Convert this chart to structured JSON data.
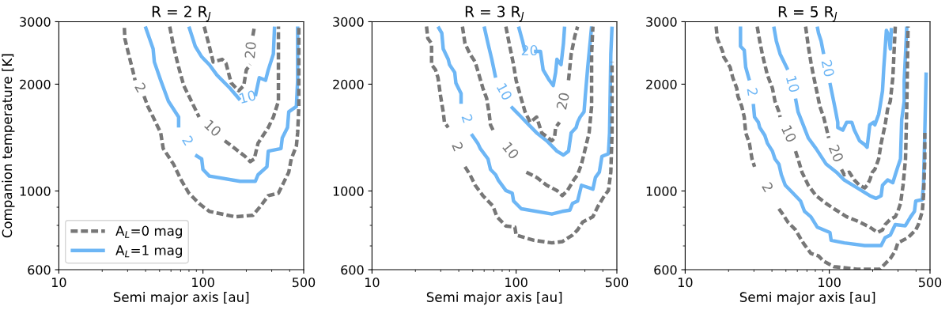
{
  "chart_data": [
    {
      "type": "line",
      "title": "R = 2 R$_{J}$",
      "xlabel": "Semi major axis [au]",
      "ylabel": "Companion temperature [K]",
      "log": "xy",
      "xlim": [
        10,
        500
      ],
      "ylim": [
        600,
        3000
      ],
      "xticks": [
        10,
        100,
        500
      ],
      "yticks": [
        600,
        1000,
        2000,
        3000
      ],
      "grid": false,
      "legend": "bottom left",
      "series": [
        {
          "name": "A$_{L}$=0 mag",
          "color": "#777777",
          "line_style": "dashed",
          "x": [
            28.5,
            28.7,
            30.5,
            32.5,
            33.8,
            null,
            39.0,
            41.5,
            45.1,
            50.9,
            53.0,
            62.5,
            70.6,
            79.9,
            94.0,
            110.7,
            166.7,
            222,
            251,
            284,
            334,
            363,
            394,
            410,
            445,
            454,
            463,
            463,
            463
          ],
          "values": [
            2882,
            2690,
            2431,
            2195,
            2051,
            null,
            1852,
            1730,
            1616,
            1459,
            1317,
            1190,
            1074,
            986,
            922,
            876,
            846,
            854,
            906,
            970,
            986,
            1056,
            1130,
            1231,
            1340,
            1459,
            1730,
            2233,
            2882
          ]
        },
        {
          "name": "A$_{L}$=1 mag",
          "color": "#6db6f5",
          "line_style": "solid",
          "x": [
            39.8,
            45.1,
            46.0,
            50.9,
            57.6,
            67.8,
            67.8,
            null,
            88.4,
            98.0,
            100,
            110.7,
            181,
            231,
            241,
            278,
            284,
            348,
            355,
            386,
            394,
            445,
            454,
            454
          ],
          "values": [
            2907,
            2515,
            2310,
            2051,
            1790,
            1616,
            1510,
            null,
            1263,
            1231,
            1150,
            1102,
            1065,
            1065,
            1111,
            1170,
            1295,
            1317,
            1410,
            1510,
            1672,
            1730,
            2051,
            2907
          ]
        },
        {
          "color": "#777777",
          "line_style": "dashed",
          "x": [
            58.8,
            62.5,
            67.8,
            73.6,
            83.2,
            94.0,
            null,
            141.6,
            166.7,
            196,
            213,
            227,
            241,
            284,
            308,
            334,
            334,
            334
          ],
          "values": [
            2907,
            2558,
            2233,
            1982,
            1790,
            1616,
            null,
            1386,
            1317,
            1252,
            1210,
            1231,
            1363,
            1510,
            1616,
            1790,
            2431,
            2907
          ]
        },
        {
          "color": "#6db6f5",
          "line_style": "solid",
          "x": [
            79.9,
            88.4,
            98,
            110.7,
            125,
            154,
            181,
            null,
            231,
            246,
            272,
            284,
            308,
            314
          ],
          "values": [
            2907,
            2558,
            2389,
            2271,
            2122,
            1949,
            1805,
            null,
            1852,
            2086,
            2051,
            2195,
            2431,
            2907
          ]
        },
        {
          "color": "#777777",
          "line_style": "dashed",
          "x": [
            102,
            110.7,
            117.8,
            135.9,
            144.5,
            157,
            177,
            192,
            200,
            213,
            null,
            222,
            227
          ],
          "values": [
            2907,
            2558,
            2310,
            2350,
            2291,
            2016,
            1916,
            1982,
            2195,
            2271,
            null,
            2739,
            2882
          ]
        }
      ],
      "annotations": [
        {
          "text": "2",
          "x": 33.8,
          "y": 2051
        },
        {
          "text": "2",
          "x": 67.8,
          "y": 1510
        },
        {
          "text": "10",
          "x": 94.0,
          "y": 1616
        },
        {
          "text": "10",
          "x": 181,
          "y": 1805
        },
        {
          "text": "20",
          "x": 213,
          "y": 2271
        }
      ]
    },
    {
      "type": "line",
      "title": "R = 3 R$_{J}$",
      "xlabel": "Semi major axis [au]",
      "log": "xy",
      "xlim": [
        10,
        500
      ],
      "ylim": [
        600,
        3000
      ],
      "xticks": [
        10,
        100,
        500
      ],
      "yticks": [
        600,
        1000,
        2000,
        3000
      ],
      "grid": false,
      "series": [
        {
          "color": "#777777",
          "line_style": "dashed",
          "x": [
            23.9,
            24.4,
            25.9,
            25.9,
            27.6,
            28.7,
            29.9,
            31.2,
            31.8,
            33.8,
            null,
            44.2,
            47.9,
            52.0,
            58.8,
            69.2,
            73.6,
            84.9,
            98,
            100,
            133,
            177,
            209,
            246,
            267,
            290,
            341,
            370,
            410,
            437,
            454,
            463,
            463
          ],
          "values": [
            2907,
            2692,
            2603,
            2271,
            2195,
            2086,
            1852,
            1672,
            1562,
            1510,
            null,
            1170,
            1111,
            1038,
            970,
            906,
            846,
            797,
            791,
            751,
            726,
            714,
            720,
            751,
            777,
            818,
            846,
            906,
            970,
            1003,
            1130,
            1459,
            2310
          ]
        },
        {
          "color": "#6db6f5",
          "line_style": "solid",
          "x": [
            28.7,
            30.5,
            31.2,
            33.8,
            34.5,
            37.5,
            38.2,
            41.5,
            41.5,
            null,
            48.9,
            54.2,
            56.4,
            63.8,
            66.4,
            72.1,
            75.1,
            84.9,
            94,
            96,
            108.6,
            177,
            209,
            236,
            246,
            267,
            284,
            341,
            355,
            378,
            394,
            437,
            445,
            454,
            463
          ],
          "values": [
            2907,
            2786,
            2515,
            2350,
            2271,
            2158,
            2016,
            1883,
            1760,
            null,
            1447,
            1363,
            1317,
            1231,
            1150,
            1111,
            1074,
            1003,
            986,
            937,
            891,
            861,
            876,
            883,
            922,
            937,
            1038,
            1012,
            1092,
            1130,
            1252,
            1273,
            1459,
            2431,
            2907
          ]
        },
        {
          "color": "#777777",
          "line_style": "dashed",
          "x": [
            42.4,
            44.2,
            47.9,
            52.0,
            55.3,
            58.8,
            62.5,
            65.1,
            66.4,
            69.2,
            null,
            117.8,
            138.7,
            163,
            192,
            209,
            227,
            251,
            267,
            284,
            302,
            321,
            334,
            334,
            341
          ],
          "values": [
            2907,
            2603,
            2431,
            2310,
            2122,
            1949,
            1822,
            1643,
            1536,
            1484,
            null,
            1130,
            1092,
            1038,
            1003,
            970,
            1003,
            1074,
            1111,
            1190,
            1317,
            1459,
            1730,
            2431,
            2907
          ]
        },
        {
          "color": "#6db6f5",
          "line_style": "solid",
          "x": [
            60,
            63.8,
            67.8,
            72.1,
            null,
            92.2,
            100,
            108.6,
            117.8,
            138.7,
            163,
            192,
            213,
            231,
            241,
            261,
            267,
            278,
            296,
            302,
            314,
            327,
            334
          ],
          "values": [
            2907,
            2603,
            2350,
            2086,
            null,
            1730,
            1672,
            1616,
            1562,
            1459,
            1386,
            1295,
            1263,
            1295,
            1459,
            1510,
            1562,
            1616,
            1672,
            1852,
            2233,
            2648,
            2907
          ]
        },
        {
          "color": "#777777",
          "line_style": "dashed",
          "x": [
            84.9,
            90.3,
            96,
            100,
            106,
            115.3,
            125.3,
            138.7,
            150.5,
            177,
            184.6,
            188,
            200,
            null,
            231,
            241,
            256,
            267
          ],
          "values": [
            2907,
            2558,
            2271,
            2051,
            1883,
            1672,
            1562,
            1616,
            1459,
            1386,
            1410,
            1510,
            1562,
            null,
            2051,
            2431,
            2739,
            2907
          ]
        },
        {
          "color": "#6db6f5",
          "line_style": "solid",
          "x": [
            104,
            110.7,
            115.3,
            null,
            133,
            147.6,
            154,
            170,
            181,
            188,
            192,
            205,
            213,
            217
          ],
          "values": [
            2907,
            2648,
            2473,
            null,
            2473,
            2473,
            2195,
            2051,
            1982,
            2158,
            2350,
            2271,
            2603,
            2907
          ]
        }
      ],
      "annotations": [
        {
          "text": "2",
          "x": 33.8,
          "y": 1510
        },
        {
          "text": "2",
          "x": 41.5,
          "y": 1760
        },
        {
          "text": "10",
          "x": 69.2,
          "y": 1484
        },
        {
          "text": "10",
          "x": 72.1,
          "y": 2086
        },
        {
          "text": "20",
          "x": 200,
          "y": 1562
        },
        {
          "text": "20",
          "x": 115.3,
          "y": 2473
        }
      ]
    },
    {
      "type": "line",
      "title": "R = 5 R$_{J}$",
      "xlabel": "Semi major axis [au]",
      "log": "xy",
      "xlim": [
        10,
        500
      ],
      "ylim": [
        600,
        3000
      ],
      "xticks": [
        10,
        100,
        500
      ],
      "yticks": [
        600,
        1000,
        2000,
        3000
      ],
      "grid": false,
      "series": [
        {
          "color": "#777777",
          "line_style": "dashed",
          "x": [
            16.4,
            16.7,
            18.2,
            18.5,
            20.5,
            21.4,
            22.8,
            23.2,
            24.7,
            25.7,
            26.3,
            27.9,
            29.1,
            30.3,
            null,
            44.7,
            47.5,
            51.5,
            58.3,
            65.9,
            74.5,
            84.2,
            91.4,
            107.7,
            155.6,
            224,
            265,
            287,
            299,
            352,
            398,
            415,
            442,
            451,
            460,
            460
          ],
          "values": [
            2907,
            2692,
            2473,
            2389,
            2233,
            2086,
            1949,
            1852,
            1730,
            1616,
            1459,
            1363,
            1231,
            1170,
            null,
            891,
            861,
            818,
            777,
            714,
            667,
            656,
            634,
            612,
            602,
            602,
            645,
            678,
            714,
            739,
            777,
            804,
            876,
            970,
            1231,
            1459
          ]
        },
        {
          "color": "#6db6f5",
          "line_style": "solid",
          "x": [
            24.2,
            24.2,
            25.7,
            26.3,
            27.9,
            null,
            29.7,
            30.3,
            32.2,
            32.9,
            35.7,
            37.2,
            40.3,
            42,
            44.7,
            46.5,
            49.5,
            56,
            63.2,
            67.3,
            74.5,
            82.5,
            101,
            103,
            127,
            176,
            229,
            244,
            265,
            287,
            337,
            367,
            390,
            398,
            442,
            451,
            460,
            470
          ],
          "values": [
            2907,
            2558,
            2494,
            2233,
            2051,
            null,
            1760,
            1616,
            1562,
            1510,
            1434,
            1363,
            1295,
            1231,
            1190,
            1111,
            1038,
            986,
            937,
            876,
            846,
            791,
            764,
            726,
            714,
            702,
            702,
            739,
            751,
            804,
            798,
            846,
            876,
            937,
            945,
            1056,
            1459,
            2158
          ]
        },
        {
          "color": "#777777",
          "line_style": "dashed",
          "x": [
            31.6,
            32.9,
            34.3,
            35.7,
            37.2,
            40.3,
            42,
            44.7,
            45.6,
            null,
            58.3,
            60.7,
            64.6,
            71.5,
            80.9,
            95.2,
            107.7,
            132,
            162,
            191,
            216,
            234,
            244,
            265,
            287,
            299,
            312,
            325,
            338,
            345,
            352
          ],
          "values": [
            2907,
            2648,
            2431,
            2271,
            2122,
            1949,
            1790,
            1672,
            1616,
            null,
            1295,
            1231,
            1130,
            1038,
            970,
            922,
            891,
            846,
            818,
            791,
            764,
            777,
            804,
            832,
            846,
            876,
            922,
            1038,
            1231,
            1730,
            2907
          ]
        },
        {
          "color": "#6db6f5",
          "line_style": "solid",
          "x": [
            41.2,
            42.9,
            45.6,
            49.5,
            51.5,
            null,
            58.3,
            60.7,
            65.9,
            71.5,
            80.9,
            95.2,
            112,
            127,
            155.6,
            191,
            211,
            229,
            234,
            254,
            276,
            287,
            299,
            312,
            318,
            331,
            331,
            338,
            345
          ],
          "values": [
            2907,
            2648,
            2431,
            2271,
            2195,
            null,
            1822,
            1672,
            1536,
            1410,
            1317,
            1190,
            1130,
            1074,
            1021,
            970,
            953,
            970,
            1038,
            1074,
            1056,
            1111,
            1170,
            1231,
            1589,
            1790,
            2051,
            2431,
            2907
          ]
        },
        {
          "color": "#777777",
          "line_style": "dashed",
          "x": [
            68.5,
            71.5,
            74.5,
            77.5,
            82.5,
            86,
            91.4,
            95.2,
            99.1,
            null,
            121.6,
            127,
            137.6,
            149.3,
            162,
            176,
            183,
            191,
            199,
            207,
            220,
            229,
            244,
            254,
            265,
            276,
            281,
            287
          ],
          "values": [
            2907,
            2558,
            2310,
            2122,
            1883,
            1730,
            1616,
            1510,
            1410,
            null,
            1150,
            1111,
            1130,
            1074,
            1038,
            1020,
            1038,
            1074,
            1130,
            1150,
            1231,
            1363,
            1536,
            1701,
            1790,
            2086,
            2431,
            2907
          ]
        },
        {
          "color": "#6db6f5",
          "line_style": "solid",
          "x": [
            82.5,
            84.2,
            87.7,
            91.4,
            null,
            101,
            105.4,
            110,
            114.5,
            114.5,
            124.2,
            132,
            143.3,
            149.3,
            162,
            176,
            183,
            191,
            203,
            207,
            220,
            225,
            234,
            239,
            244,
            249,
            259,
            265,
            270
          ],
          "values": [
            2907,
            2786,
            2648,
            2431,
            null,
            2016,
            1852,
            1701,
            1562,
            1510,
            1484,
            1562,
            1562,
            1484,
            1386,
            1351,
            1328,
            1536,
            1562,
            1536,
            1643,
            1730,
            1916,
            2233,
            2515,
            2835,
            2739,
            2515,
            2882
          ]
        }
      ],
      "annotations": [
        {
          "text": "2",
          "x": 30.3,
          "y": 1170
        },
        {
          "text": "2",
          "x": 27.9,
          "y": 2051
        },
        {
          "text": "10",
          "x": 45.6,
          "y": 1616
        },
        {
          "text": "10",
          "x": 51.5,
          "y": 2195
        },
        {
          "text": "20",
          "x": 99.1,
          "y": 1410
        },
        {
          "text": "20",
          "x": 91.4,
          "y": 2431
        }
      ]
    }
  ]
}
